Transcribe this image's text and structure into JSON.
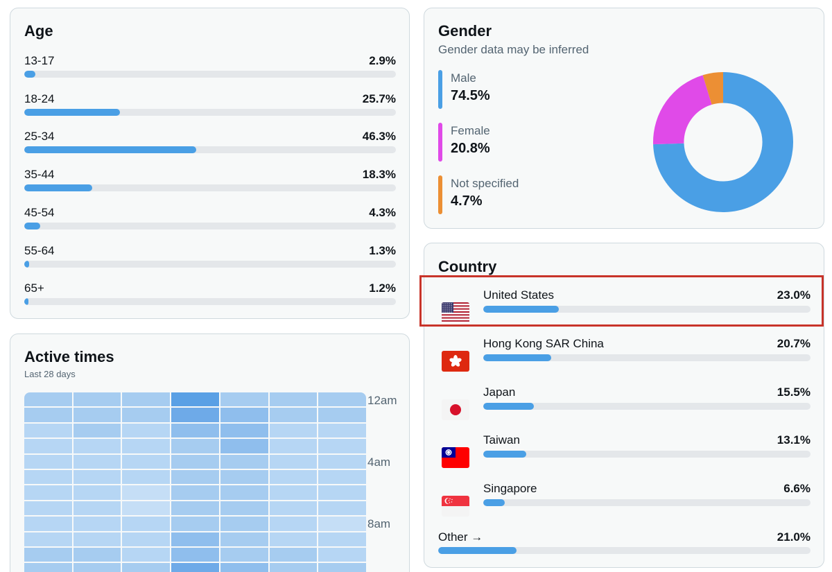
{
  "age": {
    "title": "Age",
    "rows": [
      {
        "label": "13-17",
        "value": "2.9%",
        "pct": 2.9
      },
      {
        "label": "18-24",
        "value": "25.7%",
        "pct": 25.7
      },
      {
        "label": "25-34",
        "value": "46.3%",
        "pct": 46.3
      },
      {
        "label": "35-44",
        "value": "18.3%",
        "pct": 18.3
      },
      {
        "label": "45-54",
        "value": "4.3%",
        "pct": 4.3
      },
      {
        "label": "55-64",
        "value": "1.3%",
        "pct": 1.3
      },
      {
        "label": "65+",
        "value": "1.2%",
        "pct": 1.2
      }
    ]
  },
  "gender": {
    "title": "Gender",
    "subtitle": "Gender data may be inferred",
    "items": [
      {
        "label": "Male",
        "value": "74.5%",
        "pct": 74.5,
        "color": "#4a9fe5"
      },
      {
        "label": "Female",
        "value": "20.8%",
        "pct": 20.8,
        "color": "#e04ae8"
      },
      {
        "label": "Not specified",
        "value": "4.7%",
        "pct": 4.7,
        "color": "#ec8f34"
      }
    ]
  },
  "active_times": {
    "title": "Active times",
    "subtitle": "Last 28 days",
    "time_labels": [
      "12am",
      "4am",
      "8am"
    ]
  },
  "country": {
    "title": "Country",
    "rows": [
      {
        "name": "United States",
        "value": "23.0%",
        "pct": 23.0,
        "flag": "us-flag-icon",
        "highlighted": true
      },
      {
        "name": "Hong Kong SAR China",
        "value": "20.7%",
        "pct": 20.7,
        "flag": "hk-flag-icon"
      },
      {
        "name": "Japan",
        "value": "15.5%",
        "pct": 15.5,
        "flag": "jp-flag-icon"
      },
      {
        "name": "Taiwan",
        "value": "13.1%",
        "pct": 13.1,
        "flag": "tw-flag-icon"
      },
      {
        "name": "Singapore",
        "value": "6.6%",
        "pct": 6.6,
        "flag": "sg-flag-icon"
      }
    ],
    "other": {
      "label": "Other →",
      "value": "21.0%",
      "pct": 21.0
    }
  },
  "colors": {
    "accent": "#4a9fe5",
    "track": "#e4e7ea",
    "highlight": "#c8342a"
  }
}
